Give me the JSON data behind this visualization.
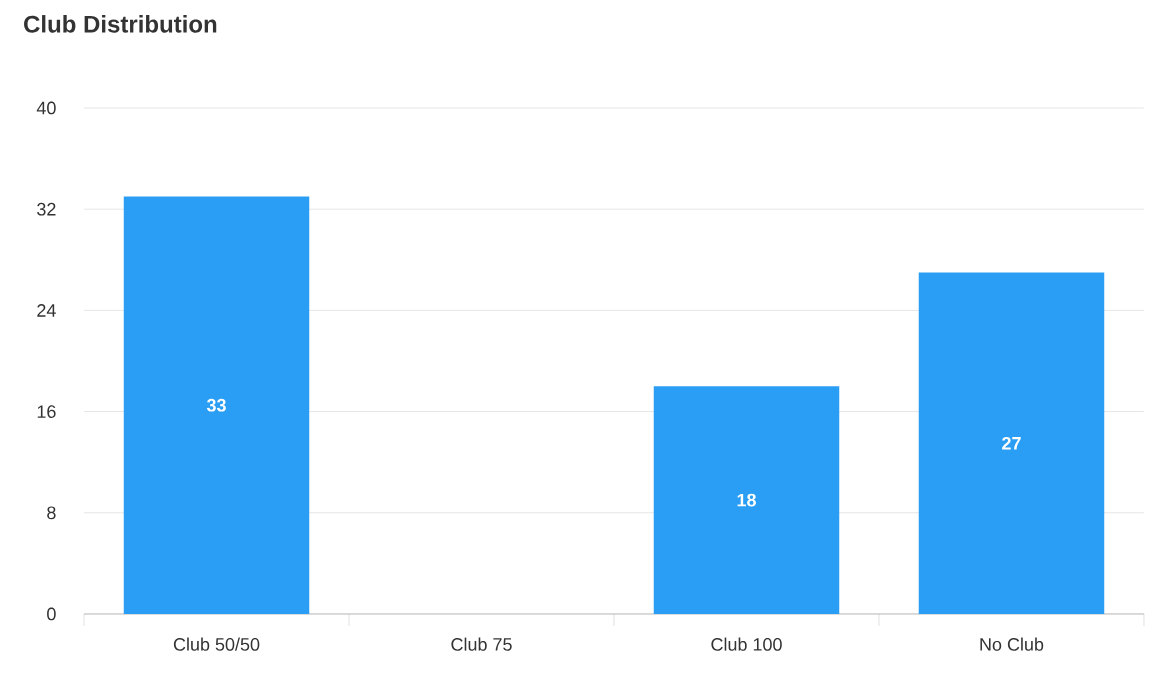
{
  "chart_data": {
    "type": "bar",
    "title": "Club Distribution",
    "categories": [
      "Club 50/50",
      "Club 75",
      "Club 100",
      "No Club"
    ],
    "values": [
      33,
      0,
      18,
      27
    ],
    "value_labels": [
      "33",
      null,
      "18",
      "27"
    ],
    "color": "#2a9df4",
    "ylim": [
      0,
      40
    ],
    "yticks": [
      0,
      8,
      16,
      24,
      32,
      40
    ],
    "grid": "y"
  }
}
